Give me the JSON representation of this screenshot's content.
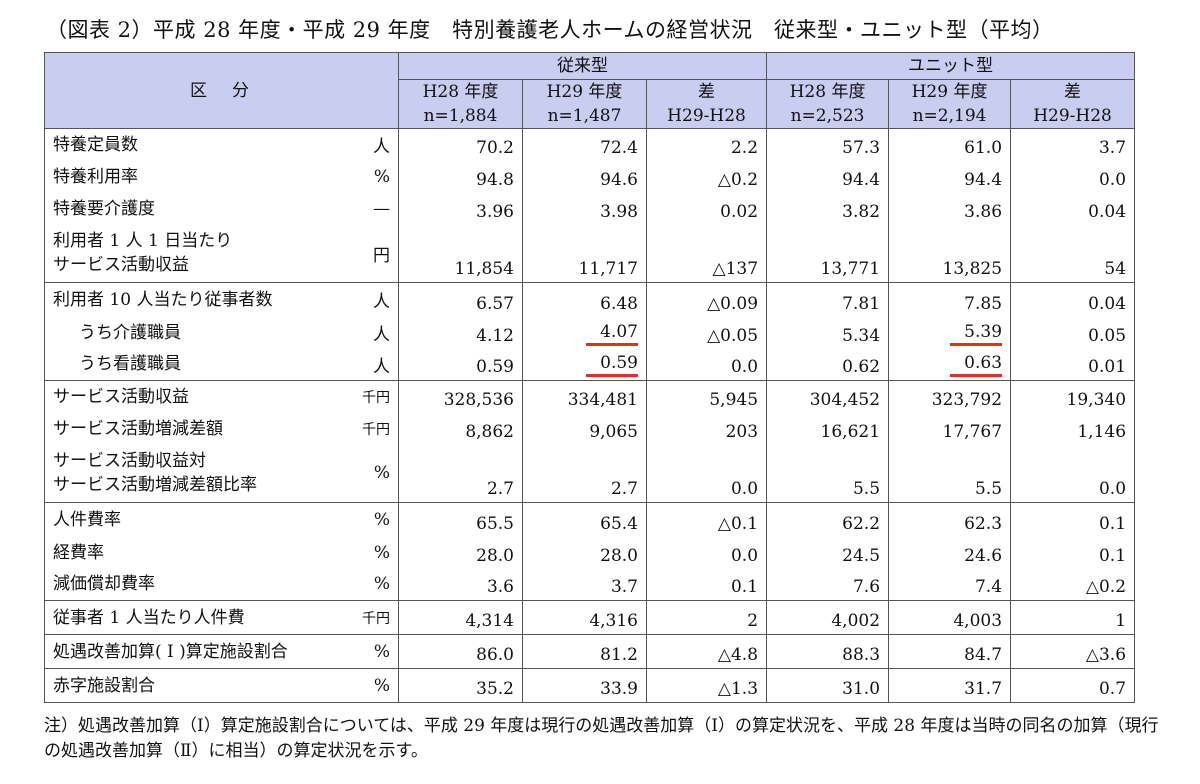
{
  "title": "（図表 2）平成 28 年度・平成 29 年度　特別養護老人ホームの経営状況　従来型・ユニット型（平均）",
  "header": {
    "category": "区　分",
    "group1": "従来型",
    "group2": "ユニット型",
    "cols": [
      {
        "year": "H28 年度",
        "n": "n=1,884"
      },
      {
        "year": "H29 年度",
        "n": "n=1,487"
      },
      {
        "year": "差",
        "n": "H29-H28"
      },
      {
        "year": "H28 年度",
        "n": "n=2,523"
      },
      {
        "year": "H29 年度",
        "n": "n=2,194"
      },
      {
        "year": "差",
        "n": "H29-H28"
      }
    ]
  },
  "rows": [
    {
      "label": "特養定員数",
      "unit": "人",
      "v": [
        "70.2",
        "72.4",
        "2.2",
        "57.3",
        "61.0",
        "3.7"
      ]
    },
    {
      "label": "特養利用率",
      "unit": "%",
      "v": [
        "94.8",
        "94.6",
        "△0.2",
        "94.4",
        "94.4",
        "0.0"
      ]
    },
    {
      "label": "特養要介護度",
      "unit": "—",
      "v": [
        "3.96",
        "3.98",
        "0.02",
        "3.82",
        "3.86",
        "0.04"
      ]
    },
    {
      "label": "利用者 1 人 1 日当たり",
      "label2": "サービス活動収益",
      "unit": "円",
      "v": [
        "11,854",
        "11,717",
        "△137",
        "13,771",
        "13,825",
        "54"
      ]
    },
    {
      "label": "利用者 10 人当たり従事者数",
      "unit": "人",
      "v": [
        "6.57",
        "6.48",
        "△0.09",
        "7.81",
        "7.85",
        "0.04"
      ]
    },
    {
      "label": "うち介護職員",
      "unit": "人",
      "v": [
        "4.12",
        "4.07",
        "△0.05",
        "5.34",
        "5.39",
        "0.05"
      ]
    },
    {
      "label": "うち看護職員",
      "unit": "人",
      "v": [
        "0.59",
        "0.59",
        "0.0",
        "0.62",
        "0.63",
        "0.01"
      ]
    },
    {
      "label": "サービス活動収益",
      "unit": "千円",
      "v": [
        "328,536",
        "334,481",
        "5,945",
        "304,452",
        "323,792",
        "19,340"
      ]
    },
    {
      "label": "サービス活動増減差額",
      "unit": "千円",
      "v": [
        "8,862",
        "9,065",
        "203",
        "16,621",
        "17,767",
        "1,146"
      ]
    },
    {
      "label": "サービス活動収益対",
      "label2": "サービス活動増減差額比率",
      "unit": "%",
      "v": [
        "2.7",
        "2.7",
        "0.0",
        "5.5",
        "5.5",
        "0.0"
      ]
    },
    {
      "label": "人件費率",
      "unit": "%",
      "v": [
        "65.5",
        "65.4",
        "△0.1",
        "62.2",
        "62.3",
        "0.1"
      ]
    },
    {
      "label": "経費率",
      "unit": "%",
      "v": [
        "28.0",
        "28.0",
        "0.0",
        "24.5",
        "24.6",
        "0.1"
      ]
    },
    {
      "label": "減価償却費率",
      "unit": "%",
      "v": [
        "3.6",
        "3.7",
        "0.1",
        "7.6",
        "7.4",
        "△0.2"
      ]
    },
    {
      "label": "従事者 1 人当たり人件費",
      "unit": "千円",
      "v": [
        "4,314",
        "4,316",
        "2",
        "4,002",
        "4,003",
        "1"
      ]
    },
    {
      "label": "処遇改善加算( Ⅰ )算定施設割合",
      "unit": "%",
      "v": [
        "86.0",
        "81.2",
        "△4.8",
        "88.3",
        "84.7",
        "△3.6"
      ]
    },
    {
      "label": "赤字施設割合",
      "unit": "%",
      "v": [
        "35.2",
        "33.9",
        "△1.3",
        "31.0",
        "31.7",
        "0.7"
      ]
    }
  ],
  "note": "注）処遇改善加算（Ⅰ）算定施設割合については、平成 29 年度は現行の処遇改善加算（Ⅰ）の算定状況を、平成 28 年度は当時の同名の加算（現行の処遇改善加算（Ⅱ）に相当）の算定状況を示す。"
}
